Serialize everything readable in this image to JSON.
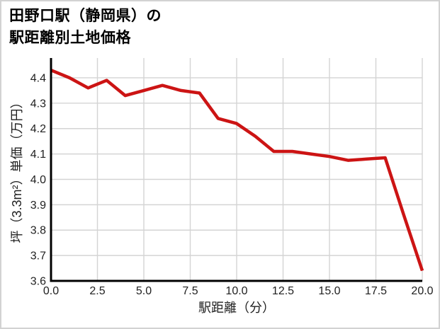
{
  "title": {
    "line1": "田野口駅（静岡県）の",
    "line2": "駅距離別土地価格"
  },
  "chart_data": {
    "type": "line",
    "title": "田野口駅（静岡県）の駅距離別土地価格",
    "xlabel": "駅距離（分）",
    "ylabel": "坪（3.3m²）単価（万円）",
    "x": [
      0,
      1,
      2,
      3,
      4,
      5,
      6,
      7,
      8,
      9,
      10,
      11,
      12,
      13,
      14,
      15,
      16,
      17,
      18,
      19,
      20
    ],
    "y": [
      4.43,
      4.4,
      4.36,
      4.39,
      4.33,
      4.35,
      4.37,
      4.35,
      4.34,
      4.24,
      4.22,
      4.17,
      4.11,
      4.11,
      4.1,
      4.09,
      4.075,
      4.08,
      4.085,
      3.86,
      3.64
    ],
    "xlim": [
      0,
      20
    ],
    "ylim": [
      3.6,
      4.478
    ],
    "xticks": {
      "values": [
        0,
        2.5,
        5,
        7.5,
        10,
        12.5,
        15,
        17.5,
        20
      ],
      "labels": [
        "0.0",
        "2.5",
        "5.0",
        "7.5",
        "10.0",
        "12.5",
        "15.0",
        "17.5",
        "20.0"
      ]
    },
    "yticks": {
      "values": [
        3.6,
        3.7,
        3.8,
        3.9,
        4.0,
        4.1,
        4.2,
        4.3,
        4.4
      ],
      "labels": [
        "3.6",
        "3.7",
        "3.8",
        "3.9",
        "4.0",
        "4.1",
        "4.2",
        "4.3",
        "4.4"
      ]
    },
    "grid": true,
    "legend": false,
    "colors": {
      "line": "#cc1414",
      "grid": "#d4d4d4",
      "axis": "#000000",
      "text": "#1f1f1f"
    }
  }
}
